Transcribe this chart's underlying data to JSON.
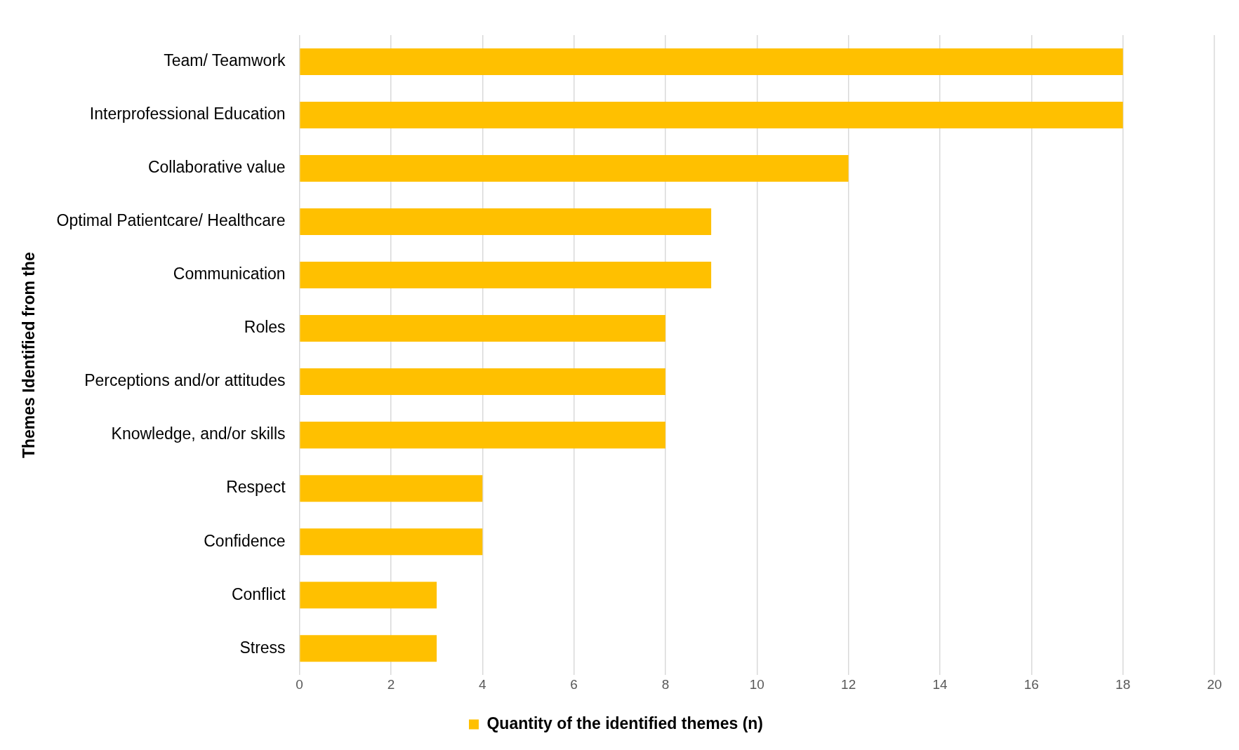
{
  "chart_data": {
    "type": "bar",
    "orientation": "horizontal",
    "ylabel": "Themes Identified from the",
    "categories": [
      "Team/ Teamwork",
      "Interprofessional Education",
      "Collaborative value",
      "Optimal Patientcare/ Healthcare",
      "Communication",
      "Roles",
      "Perceptions and/or attitudes",
      "Knowledge, and/or skills",
      "Respect",
      "Confidence",
      "Conflict",
      "Stress"
    ],
    "series": [
      {
        "name": "Quantity of the identified themes (n)",
        "color": "#ffc000",
        "values": [
          18,
          18,
          12,
          9,
          9,
          8,
          8,
          8,
          4,
          4,
          3,
          3
        ]
      }
    ],
    "xlim": [
      0,
      20
    ],
    "xticks": [
      0,
      2,
      4,
      6,
      8,
      10,
      12,
      14,
      16,
      18,
      20
    ],
    "grid": "x",
    "legend": "bottom"
  }
}
